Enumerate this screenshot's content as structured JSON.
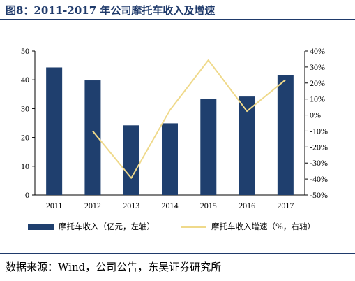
{
  "title": "图8：2011-2017 年公司摩托车收入及增速",
  "source": "数据来源：Wind，公司公告，东吴证券研究所",
  "colors": {
    "bar": "#1f3f6e",
    "line": "#efd98a",
    "rule": "#1f3a6b"
  },
  "chart_data": {
    "type": "bar+line",
    "categories": [
      "2011",
      "2012",
      "2013",
      "2014",
      "2015",
      "2016",
      "2017"
    ],
    "series": [
      {
        "name": "摩托车收入（亿元，左轴）",
        "type": "bar",
        "axis": "left",
        "values": [
          44.3,
          39.8,
          24.2,
          24.9,
          33.4,
          34.2,
          41.7
        ]
      },
      {
        "name": "摩托车收入增速（%，右轴）",
        "type": "line",
        "axis": "right",
        "values": [
          null,
          -10.0,
          -39.4,
          3.0,
          34.3,
          2.4,
          22.0
        ]
      }
    ],
    "y_left": {
      "ylim": [
        0,
        50
      ],
      "ticks": [
        "0",
        "10",
        "20",
        "30",
        "40",
        "50"
      ]
    },
    "y_right": {
      "ylim": [
        -50,
        40
      ],
      "ticks": [
        "-50%",
        "-40%",
        "-30%",
        "-20%",
        "-10%",
        "0%",
        "10%",
        "20%",
        "30%",
        "40%"
      ]
    },
    "legend_position": "bottom",
    "grid": false
  }
}
